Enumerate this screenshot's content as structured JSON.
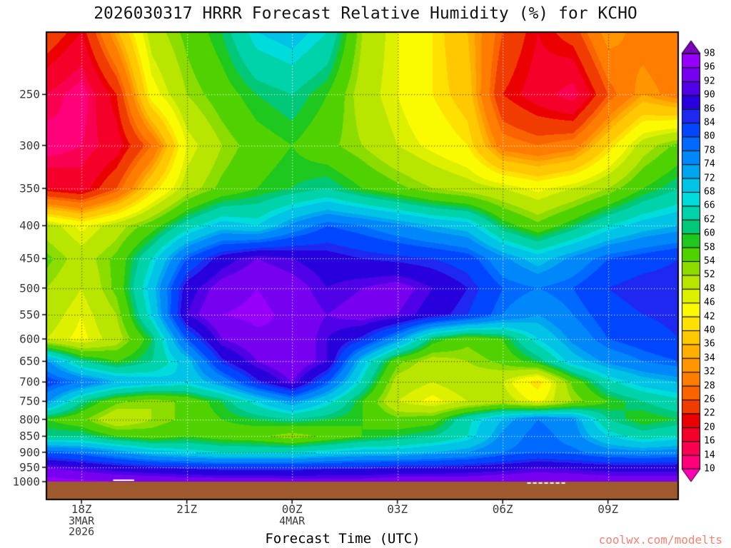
{
  "chart_data": {
    "type": "heatmap",
    "title": "2026030317 HRRR Forecast Relative Humidity (%) for KCHO",
    "xlabel": "Forecast Time (UTC)",
    "watermark": "coolwx.com/modelts",
    "units": "%",
    "x_range_hours": [
      17,
      35
    ],
    "x_ticks": [
      {
        "hour": 18,
        "label": "18Z"
      },
      {
        "hour": 21,
        "label": "21Z"
      },
      {
        "hour": 24,
        "label": "00Z"
      },
      {
        "hour": 27,
        "label": "03Z"
      },
      {
        "hour": 30,
        "label": "06Z"
      },
      {
        "hour": 33,
        "label": "09Z"
      }
    ],
    "x_date_annotations": [
      {
        "hour": 18,
        "lines": [
          "3MAR",
          "2026"
        ]
      },
      {
        "hour": 24,
        "lines": [
          "4MAR"
        ]
      }
    ],
    "y_axis": {
      "scale": "log",
      "unit": "hPa",
      "range": [
        200,
        1000
      ],
      "ticks": [
        250,
        300,
        350,
        400,
        450,
        500,
        550,
        600,
        650,
        700,
        750,
        800,
        850,
        900,
        950,
        1000
      ]
    },
    "colorbar": {
      "levels": [
        10,
        14,
        16,
        20,
        22,
        26,
        28,
        32,
        34,
        36,
        40,
        42,
        46,
        48,
        52,
        54,
        58,
        60,
        62,
        66,
        68,
        72,
        74,
        78,
        80,
        84,
        86,
        90,
        92,
        96,
        98
      ],
      "colors_low_to_high": [
        "#FF00B4",
        "#FF0078",
        "#FA0050",
        "#F50028",
        "#EB0000",
        "#F03C00",
        "#FA6400",
        "#FF7D00",
        "#FF9600",
        "#FFAF00",
        "#FFC800",
        "#FFE100",
        "#FAFA00",
        "#DCF000",
        "#B9E600",
        "#8CDC00",
        "#50D200",
        "#1EC81E",
        "#00C878",
        "#00D2AA",
        "#00DCDC",
        "#00C3E6",
        "#00A5F0",
        "#0087FA",
        "#0069FF",
        "#0046FF",
        "#1E28F0",
        "#2800DC",
        "#5000E6",
        "#7800F0",
        "#9600FA",
        "#7A00BE"
      ]
    },
    "grid": {
      "time_hours": [
        17,
        18,
        19,
        20,
        21,
        22,
        23,
        24,
        25,
        26,
        27,
        28,
        29,
        30,
        31,
        32,
        33,
        34,
        35
      ],
      "pressure_hpa": [
        200,
        250,
        300,
        350,
        400,
        450,
        500,
        550,
        600,
        650,
        700,
        750,
        800,
        850,
        900,
        950,
        1000
      ],
      "rh_percent": [
        [
          25,
          20,
          35,
          50,
          55,
          60,
          68,
          70,
          66,
          52,
          46,
          42,
          36,
          26,
          20,
          24,
          34,
          30,
          28
        ],
        [
          16,
          12,
          22,
          44,
          52,
          56,
          60,
          62,
          58,
          50,
          46,
          42,
          38,
          22,
          18,
          14,
          26,
          34,
          30
        ],
        [
          12,
          14,
          18,
          28,
          46,
          52,
          56,
          58,
          55,
          52,
          48,
          45,
          42,
          30,
          28,
          30,
          40,
          50,
          55
        ],
        [
          20,
          18,
          26,
          40,
          50,
          55,
          58,
          60,
          62,
          58,
          55,
          52,
          50,
          48,
          45,
          48,
          52,
          58,
          62
        ],
        [
          50,
          45,
          50,
          56,
          64,
          70,
          68,
          75,
          80,
          78,
          75,
          72,
          70,
          60,
          55,
          60,
          66,
          70,
          72
        ],
        [
          55,
          50,
          55,
          66,
          80,
          88,
          92,
          90,
          88,
          86,
          85,
          84,
          82,
          75,
          70,
          75,
          80,
          82,
          84
        ],
        [
          52,
          48,
          55,
          70,
          88,
          94,
          96,
          94,
          90,
          92,
          94,
          90,
          86,
          80,
          78,
          80,
          84,
          86,
          86
        ],
        [
          50,
          46,
          52,
          68,
          90,
          96,
          97,
          95,
          92,
          94,
          92,
          88,
          84,
          78,
          74,
          78,
          82,
          84,
          85
        ],
        [
          48,
          45,
          50,
          60,
          80,
          92,
          95,
          96,
          90,
          85,
          75,
          60,
          55,
          58,
          68,
          75,
          80,
          82,
          84
        ],
        [
          75,
          62,
          58,
          62,
          70,
          85,
          92,
          96,
          90,
          70,
          55,
          50,
          52,
          55,
          60,
          70,
          75,
          78,
          80
        ],
        [
          82,
          78,
          72,
          70,
          68,
          75,
          85,
          92,
          80,
          65,
          50,
          48,
          50,
          48,
          40,
          55,
          65,
          70,
          72
        ],
        [
          75,
          62,
          55,
          52,
          55,
          60,
          68,
          75,
          68,
          58,
          48,
          45,
          48,
          50,
          45,
          52,
          58,
          62,
          65
        ],
        [
          58,
          55,
          48,
          52,
          55,
          58,
          60,
          62,
          60,
          58,
          55,
          56,
          65,
          72,
          78,
          75,
          62,
          58,
          60
        ],
        [
          62,
          62,
          58,
          56,
          58,
          56,
          55,
          52,
          55,
          58,
          60,
          62,
          66,
          75,
          80,
          76,
          68,
          64,
          66
        ],
        [
          80,
          78,
          74,
          70,
          68,
          66,
          66,
          66,
          68,
          70,
          70,
          72,
          74,
          78,
          80,
          79,
          76,
          75,
          76
        ],
        [
          92,
          90,
          88,
          86,
          85,
          84,
          84,
          84,
          85,
          85,
          86,
          86,
          87,
          88,
          90,
          89,
          88,
          88,
          88
        ],
        [
          98,
          97,
          96,
          96,
          95,
          95,
          95,
          94,
          94,
          94,
          95,
          95,
          95,
          96,
          96,
          96,
          95,
          95,
          95
        ]
      ]
    },
    "surface_marks": [
      {
        "from_hour": 18.9,
        "to_hour": 19.5,
        "dy": -2,
        "dash": false
      },
      {
        "from_hour": 30.7,
        "to_hour": 31.8,
        "dy": 2,
        "dash": true
      }
    ],
    "style": {
      "ground_color": "#9E5A2D",
      "watermark_color": "#FA8072",
      "axis_text_color": "#3C3C3C",
      "frame_color": "#000000"
    }
  }
}
